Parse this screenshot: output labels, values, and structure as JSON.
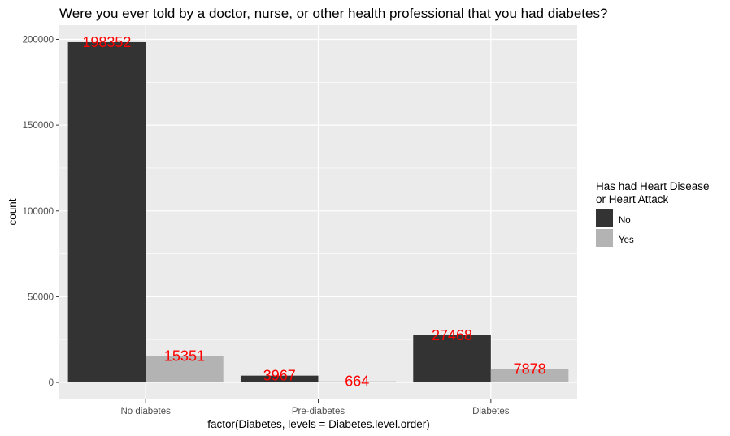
{
  "chart_data": {
    "type": "bar",
    "title": "Were you ever told by a doctor, nurse, or other health professional that you had diabetes?",
    "xlabel": "factor(Diabetes, levels = Diabetes.level.order)",
    "ylabel": "count",
    "categories": [
      "No diabetes",
      "Pre-diabetes",
      "Diabetes"
    ],
    "series": [
      {
        "name": "No",
        "values": [
          198352,
          3967,
          27468
        ],
        "color": "#333333"
      },
      {
        "name": "Yes",
        "values": [
          15351,
          664,
          7878
        ],
        "color": "#b3b3b3"
      }
    ],
    "ylim": [
      -9917.6,
      208269.6
    ],
    "yticks": [
      0,
      50000,
      100000,
      150000,
      200000
    ],
    "ytick_labels": [
      "0",
      "50000",
      "100000",
      "150000",
      "200000"
    ],
    "grid": true,
    "legend": {
      "title_lines": [
        "Has had Heart Disease",
        "or Heart Attack"
      ],
      "position": "right"
    },
    "data_label_color": "#ff0000",
    "panel_background": "#ebebeb",
    "grid_color": "#ffffff"
  }
}
